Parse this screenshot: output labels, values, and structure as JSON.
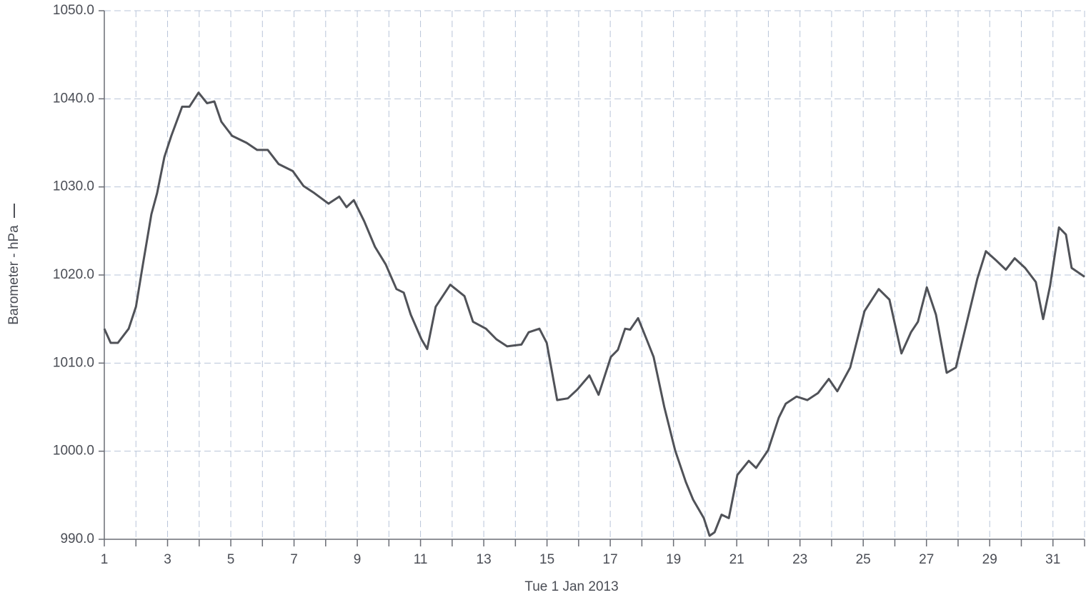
{
  "chart_data": {
    "type": "line",
    "xlabel": "Tue 1 Jan 2013",
    "x": [
      1,
      1.2,
      1.43,
      1.77,
      2.0,
      2.22,
      2.49,
      2.67,
      2.9,
      3.12,
      3.46,
      3.69,
      3.98,
      4.25,
      4.48,
      4.7,
      5.04,
      5.5,
      5.83,
      6.17,
      6.51,
      6.96,
      7.3,
      7.64,
      8.09,
      8.43,
      8.66,
      8.89,
      9.22,
      9.56,
      9.9,
      10.24,
      10.47,
      10.69,
      11.03,
      11.21,
      11.48,
      11.94,
      12.39,
      12.66,
      13.07,
      13.4,
      13.74,
      14.19,
      14.42,
      14.76,
      14.99,
      15.32,
      15.66,
      15.96,
      16.34,
      16.63,
      17.02,
      17.24,
      17.47,
      17.63,
      17.88,
      18.15,
      18.37,
      18.71,
      19.05,
      19.39,
      19.62,
      19.96,
      20.14,
      20.3,
      20.52,
      20.75,
      21.02,
      21.38,
      21.61,
      21.99,
      22.33,
      22.55,
      22.89,
      23.23,
      23.57,
      23.91,
      24.18,
      24.59,
      25.04,
      25.49,
      25.83,
      26.21,
      26.51,
      26.73,
      27.01,
      27.3,
      27.64,
      27.93,
      28.2,
      28.61,
      28.88,
      29.22,
      29.51,
      29.79,
      30.12,
      30.46,
      30.69,
      30.91,
      31.19,
      31.41,
      31.59,
      32
    ],
    "series": [
      {
        "name": "Barometer - hPa",
        "color": "#505258",
        "values": [
          1013.9,
          1012.3,
          1012.3,
          1013.9,
          1016.4,
          1021.2,
          1026.9,
          1029.3,
          1033.4,
          1035.8,
          1039.1,
          1039.1,
          1040.7,
          1039.5,
          1039.7,
          1037.4,
          1035.8,
          1035.0,
          1034.2,
          1034.2,
          1032.6,
          1031.8,
          1030.1,
          1029.3,
          1028.1,
          1028.9,
          1027.7,
          1028.5,
          1026.1,
          1023.2,
          1021.2,
          1018.4,
          1018.0,
          1015.5,
          1012.7,
          1011.6,
          1016.4,
          1018.9,
          1017.6,
          1014.7,
          1013.9,
          1012.7,
          1011.9,
          1012.1,
          1013.5,
          1013.9,
          1012.3,
          1005.8,
          1006.0,
          1007.0,
          1008.6,
          1006.4,
          1010.7,
          1011.5,
          1013.9,
          1013.8,
          1015.1,
          1012.7,
          1010.7,
          1005.0,
          1000.1,
          996.5,
          994.5,
          992.4,
          990.4,
          990.8,
          992.8,
          992.4,
          997.3,
          998.9,
          998.1,
          1000.1,
          1003.8,
          1005.4,
          1006.2,
          1005.8,
          1006.6,
          1008.2,
          1006.8,
          1009.5,
          1015.9,
          1018.4,
          1017.2,
          1011.1,
          1013.5,
          1014.7,
          1018.6,
          1015.5,
          1008.9,
          1009.5,
          1013.5,
          1019.6,
          1022.7,
          1021.6,
          1020.6,
          1021.9,
          1020.8,
          1019.2,
          1015.0,
          1018.8,
          1025.4,
          1024.6,
          1020.8,
          1019.8
        ]
      }
    ],
    "xlim": [
      1,
      32
    ],
    "xticks": [
      1,
      3,
      5,
      7,
      9,
      11,
      13,
      15,
      17,
      19,
      21,
      23,
      25,
      27,
      29,
      31
    ],
    "xminorticks": [
      2,
      4,
      6,
      8,
      10,
      12,
      14,
      16,
      18,
      20,
      22,
      24,
      26,
      28,
      30,
      32
    ],
    "ylim": [
      990,
      1050
    ],
    "yticks": [
      {
        "value": 990,
        "label": "990.0"
      },
      {
        "value": 1000,
        "label": "1000.0"
      },
      {
        "value": 1010,
        "label": "1010.0"
      },
      {
        "value": 1020,
        "label": "1020.0"
      },
      {
        "value": 1030,
        "label": "1030.0"
      },
      {
        "value": 1040,
        "label": "1040.0"
      },
      {
        "value": 1050,
        "label": "1050.0"
      }
    ],
    "grid": true
  }
}
